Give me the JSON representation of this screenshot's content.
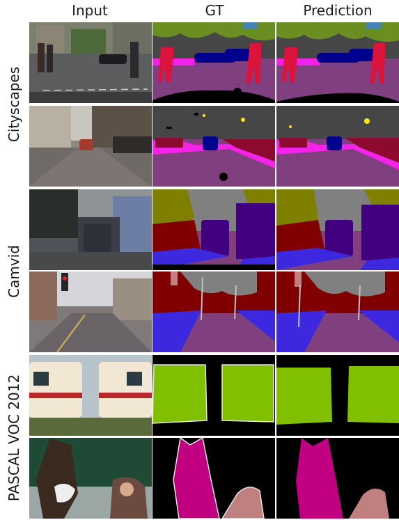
{
  "columns": [
    "Input",
    "GT",
    "Prediction"
  ],
  "datasets": [
    "Cityscapes",
    "Camvid",
    "PASCAL VOC 2012"
  ],
  "colors": {
    "road": "#80407f",
    "sidewalk": "#f523e8",
    "building": "#464646",
    "vegetation": "#6b8e23",
    "sky": "#4682b4",
    "person": "#dc143c",
    "car": "#00008e",
    "camvid_building": "#800000",
    "camvid_sky": "#808080",
    "camvid_tree": "#808000",
    "camvid_road": "#804080",
    "camvid_sidewalk": "#3c28de",
    "camvid_car": "#40007f",
    "voc_train": "#80c000",
    "voc_horse": "#c00080",
    "voc_person": "#c08080",
    "voc_background": "#000000"
  }
}
